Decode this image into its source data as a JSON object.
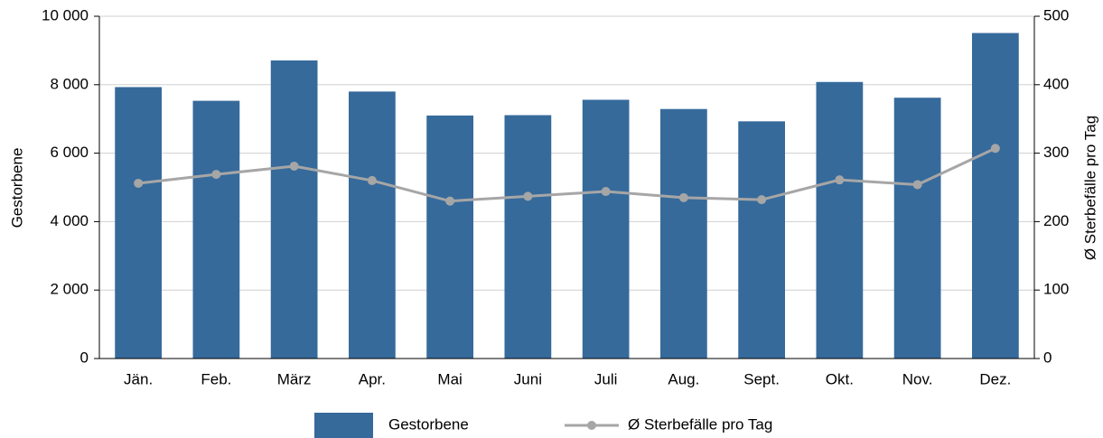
{
  "chart_data": {
    "type": "bar_line",
    "categories": [
      "Jän.",
      "Feb.",
      "März",
      "Apr.",
      "Mai",
      "Juni",
      "Juli",
      "Aug.",
      "Sept.",
      "Okt.",
      "Nov.",
      "Dez."
    ],
    "series": [
      {
        "name": "Gestorbene",
        "color": "#366a9b",
        "values": [
          7930,
          7530,
          8710,
          7800,
          7100,
          7110,
          7560,
          7290,
          6930,
          8080,
          7620,
          9510
        ]
      },
      {
        "name": "Ø Sterbefälle pro Tag",
        "color": "#a6a6a6",
        "axis": "y2",
        "values": [
          256,
          269,
          281,
          260,
          230,
          237,
          244,
          235,
          232,
          261,
          254,
          307
        ]
      }
    ],
    "ylabel": "Gestorbene",
    "y2label": "Ø Sterbefälle pro Tag",
    "ylim": [
      0,
      10000
    ],
    "yticks": [
      0,
      {
        "value": 2000,
        "label": "2 000"
      },
      {
        "value": 4000,
        "label": "4 000"
      },
      {
        "value": 6000,
        "label": "6 000"
      },
      {
        "value": 8000,
        "label": "8 000"
      },
      {
        "value": 10000,
        "label": "10 000"
      }
    ],
    "y2lim": [
      0,
      500
    ],
    "y2ticks": [
      0,
      100,
      200,
      300,
      400,
      500
    ],
    "grid": true,
    "legend": "bottom"
  }
}
